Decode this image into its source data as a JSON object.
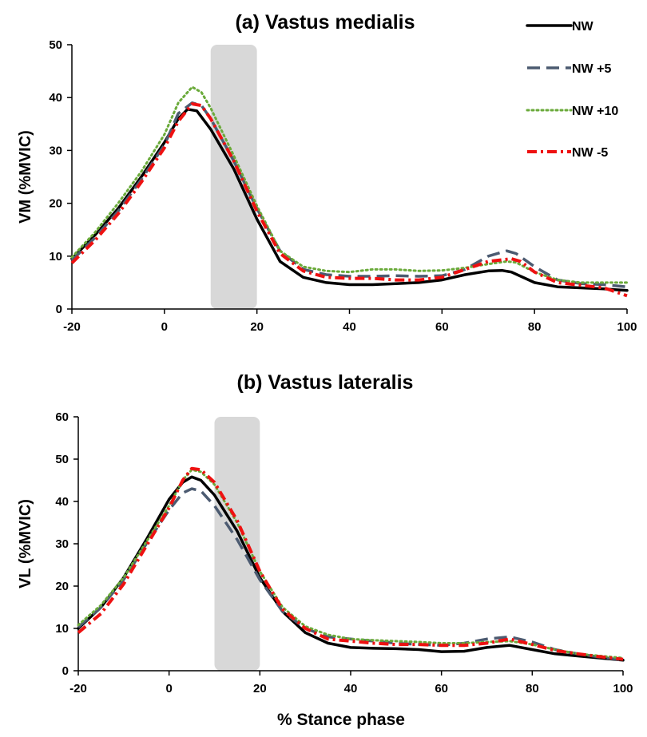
{
  "chart_data": [
    {
      "type": "line",
      "title": "(a) Vastus medialis",
      "ylabel": "VM (%MVIC)",
      "xlabel": "",
      "xlim": [
        -20,
        100
      ],
      "ylim": [
        0,
        50
      ],
      "xticks": [
        -20,
        0,
        20,
        40,
        60,
        80,
        100
      ],
      "yticks": [
        0,
        10,
        20,
        30,
        40,
        50
      ],
      "grid": false,
      "shaded_region": [
        10,
        20
      ],
      "legend_position": "top-right",
      "series": [
        {
          "name": "NW",
          "color": "#000000",
          "style": "solid",
          "points": [
            [
              -20,
              9.5
            ],
            [
              -15,
              14
            ],
            [
              -10,
              19
            ],
            [
              -5,
              25
            ],
            [
              0,
              31.5
            ],
            [
              3,
              36
            ],
            [
              5,
              37.8
            ],
            [
              7,
              37.5
            ],
            [
              10,
              34
            ],
            [
              15,
              26.5
            ],
            [
              20,
              17
            ],
            [
              25,
              9
            ],
            [
              30,
              6
            ],
            [
              35,
              5
            ],
            [
              40,
              4.6
            ],
            [
              45,
              4.6
            ],
            [
              50,
              4.8
            ],
            [
              55,
              5
            ],
            [
              60,
              5.5
            ],
            [
              65,
              6.5
            ],
            [
              70,
              7.2
            ],
            [
              73,
              7.3
            ],
            [
              75,
              7
            ],
            [
              80,
              5
            ],
            [
              85,
              4.2
            ],
            [
              90,
              4
            ],
            [
              95,
              3.8
            ],
            [
              100,
              3.5
            ]
          ]
        },
        {
          "name": "NW +5",
          "color": "#4c5b71",
          "style": "longdash",
          "points": [
            [
              -20,
              9.2
            ],
            [
              -15,
              13.5
            ],
            [
              -10,
              18.5
            ],
            [
              -5,
              24.5
            ],
            [
              0,
              31
            ],
            [
              3,
              37
            ],
            [
              6,
              39
            ],
            [
              8,
              38.5
            ],
            [
              10,
              36
            ],
            [
              15,
              28
            ],
            [
              20,
              19
            ],
            [
              25,
              11
            ],
            [
              30,
              7.5
            ],
            [
              35,
              6.5
            ],
            [
              40,
              6.2
            ],
            [
              45,
              6.2
            ],
            [
              50,
              6.3
            ],
            [
              55,
              6.2
            ],
            [
              60,
              6.3
            ],
            [
              65,
              7.5
            ],
            [
              70,
              10
            ],
            [
              74,
              11
            ],
            [
              76,
              10.5
            ],
            [
              80,
              8
            ],
            [
              85,
              5.5
            ],
            [
              90,
              4.8
            ],
            [
              95,
              4.6
            ],
            [
              100,
              4.2
            ]
          ]
        },
        {
          "name": "NW +10",
          "color": "#6aaa3a",
          "style": "dotted",
          "points": [
            [
              -20,
              9.8
            ],
            [
              -15,
              14.5
            ],
            [
              -10,
              20
            ],
            [
              -5,
              26
            ],
            [
              0,
              33
            ],
            [
              3,
              39
            ],
            [
              6,
              42
            ],
            [
              8,
              41
            ],
            [
              10,
              38
            ],
            [
              15,
              29
            ],
            [
              20,
              19.5
            ],
            [
              25,
              11
            ],
            [
              30,
              8
            ],
            [
              35,
              7.2
            ],
            [
              40,
              7
            ],
            [
              45,
              7.5
            ],
            [
              50,
              7.5
            ],
            [
              55,
              7.2
            ],
            [
              60,
              7.3
            ],
            [
              65,
              7.8
            ],
            [
              70,
              8.5
            ],
            [
              74,
              9
            ],
            [
              76,
              8.8
            ],
            [
              80,
              7
            ],
            [
              85,
              5.5
            ],
            [
              90,
              5
            ],
            [
              95,
              5
            ],
            [
              100,
              5
            ]
          ]
        },
        {
          "name": "NW -5",
          "color": "#ee1111",
          "style": "dashdot",
          "points": [
            [
              -20,
              8.7
            ],
            [
              -15,
              13
            ],
            [
              -10,
              18
            ],
            [
              -5,
              24
            ],
            [
              0,
              30.5
            ],
            [
              3,
              35.5
            ],
            [
              6,
              38.8
            ],
            [
              8,
              38.5
            ],
            [
              10,
              36
            ],
            [
              15,
              28
            ],
            [
              20,
              18.5
            ],
            [
              25,
              10.5
            ],
            [
              30,
              7.2
            ],
            [
              35,
              6
            ],
            [
              40,
              5.8
            ],
            [
              45,
              5.8
            ],
            [
              50,
              5.5
            ],
            [
              55,
              5.5
            ],
            [
              60,
              6
            ],
            [
              65,
              7.5
            ],
            [
              70,
              9
            ],
            [
              75,
              9.5
            ],
            [
              77,
              9
            ],
            [
              80,
              7
            ],
            [
              85,
              5
            ],
            [
              90,
              4.5
            ],
            [
              95,
              4
            ],
            [
              100,
              2.5
            ]
          ]
        }
      ]
    },
    {
      "type": "line",
      "title": "(b) Vastus lateralis",
      "ylabel": "VL (%MVIC)",
      "xlabel": "% Stance phase",
      "xlim": [
        -20,
        100
      ],
      "ylim": [
        0,
        60
      ],
      "xticks": [
        -20,
        0,
        20,
        40,
        60,
        80,
        100
      ],
      "yticks": [
        0,
        10,
        20,
        30,
        40,
        50,
        60
      ],
      "grid": false,
      "shaded_region": [
        10,
        20
      ],
      "series": [
        {
          "name": "NW",
          "color": "#000000",
          "style": "solid",
          "points": [
            [
              -20,
              10
            ],
            [
              -15,
              15
            ],
            [
              -10,
              22
            ],
            [
              -5,
              31
            ],
            [
              0,
              40.5
            ],
            [
              3,
              44.5
            ],
            [
              5,
              45.8
            ],
            [
              7,
              45
            ],
            [
              10,
              41.5
            ],
            [
              15,
              33
            ],
            [
              20,
              22
            ],
            [
              25,
              14
            ],
            [
              30,
              9
            ],
            [
              35,
              6.5
            ],
            [
              40,
              5.5
            ],
            [
              45,
              5.3
            ],
            [
              50,
              5.2
            ],
            [
              55,
              5
            ],
            [
              60,
              4.5
            ],
            [
              65,
              4.6
            ],
            [
              70,
              5.5
            ],
            [
              75,
              6
            ],
            [
              80,
              5
            ],
            [
              85,
              4
            ],
            [
              90,
              3.5
            ],
            [
              95,
              3
            ],
            [
              100,
              2.5
            ]
          ]
        },
        {
          "name": "NW +5",
          "color": "#4c5b71",
          "style": "longdash",
          "points": [
            [
              -20,
              10.3
            ],
            [
              -15,
              15
            ],
            [
              -10,
              21.5
            ],
            [
              -5,
              30
            ],
            [
              0,
              38
            ],
            [
              3,
              42
            ],
            [
              5,
              43
            ],
            [
              7,
              42.5
            ],
            [
              10,
              39
            ],
            [
              15,
              31
            ],
            [
              20,
              21.5
            ],
            [
              25,
              14
            ],
            [
              30,
              10
            ],
            [
              35,
              8
            ],
            [
              40,
              7.5
            ],
            [
              45,
              7
            ],
            [
              50,
              6.5
            ],
            [
              55,
              6.2
            ],
            [
              60,
              6
            ],
            [
              65,
              6.5
            ],
            [
              70,
              7.5
            ],
            [
              75,
              8
            ],
            [
              80,
              6.8
            ],
            [
              85,
              5
            ],
            [
              90,
              4
            ],
            [
              95,
              3.2
            ],
            [
              100,
              2.5
            ]
          ]
        },
        {
          "name": "NW +10",
          "color": "#6aaa3a",
          "style": "dotted",
          "points": [
            [
              -20,
              10.8
            ],
            [
              -15,
              15.5
            ],
            [
              -10,
              22
            ],
            [
              -5,
              30.5
            ],
            [
              0,
              39
            ],
            [
              3,
              45
            ],
            [
              5,
              47.5
            ],
            [
              7,
              47
            ],
            [
              10,
              44
            ],
            [
              15,
              35
            ],
            [
              20,
              23.5
            ],
            [
              25,
              15
            ],
            [
              30,
              10.5
            ],
            [
              35,
              8.5
            ],
            [
              40,
              7.5
            ],
            [
              45,
              7.2
            ],
            [
              50,
              7
            ],
            [
              55,
              6.8
            ],
            [
              60,
              6.5
            ],
            [
              65,
              6.5
            ],
            [
              70,
              6.8
            ],
            [
              75,
              7
            ],
            [
              80,
              6.2
            ],
            [
              85,
              5
            ],
            [
              90,
              4
            ],
            [
              95,
              3.5
            ],
            [
              100,
              3
            ]
          ]
        },
        {
          "name": "NW -5",
          "color": "#ee1111",
          "style": "dashdot",
          "points": [
            [
              -20,
              9
            ],
            [
              -15,
              13.5
            ],
            [
              -10,
              20.5
            ],
            [
              -5,
              29.5
            ],
            [
              0,
              38.5
            ],
            [
              3,
              45
            ],
            [
              5,
              47.8
            ],
            [
              7,
              47.5
            ],
            [
              10,
              44.5
            ],
            [
              15,
              35.5
            ],
            [
              20,
              23.5
            ],
            [
              25,
              14.5
            ],
            [
              30,
              10
            ],
            [
              35,
              7.5
            ],
            [
              40,
              7
            ],
            [
              45,
              6.5
            ],
            [
              50,
              6.2
            ],
            [
              55,
              6.2
            ],
            [
              60,
              6
            ],
            [
              65,
              6
            ],
            [
              70,
              6.5
            ],
            [
              75,
              7.5
            ],
            [
              80,
              6.2
            ],
            [
              85,
              4.8
            ],
            [
              90,
              4
            ],
            [
              95,
              3.3
            ],
            [
              100,
              2.7
            ]
          ]
        }
      ]
    }
  ]
}
